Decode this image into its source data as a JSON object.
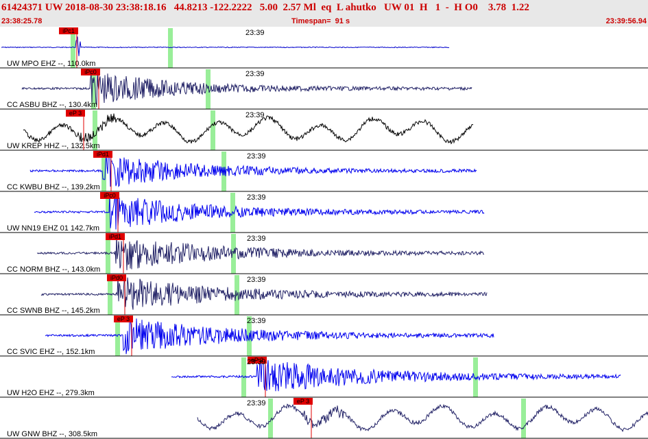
{
  "header": {
    "title": "61424371 UW 2018-08-30 23:38:18.16   44.8213 -122.2222   5.00  2.57 Ml  eq  L ahutko   UW 01  H   1  -  H O0    3.78  1.22",
    "start_time": "23:38:25.78",
    "timespan": "Timespan=  91 s",
    "end_time": "23:39:56.94"
  },
  "colors": {
    "header_text": "#cc0000",
    "pick_fill": "#e00000",
    "pick_line": "#e00000",
    "highlight": "#99ee99",
    "trace_blue": "#0000ee",
    "trace_dark": "#222266",
    "trace_black": "#000000"
  },
  "time_label": "23:39",
  "panels": [
    {
      "label": "UW MPO EHZ --, 110.0km",
      "pick": "iPc1",
      "color": "#0000cc",
      "style": "spike"
    },
    {
      "label": "CC ASBU BHZ --, 130.4km",
      "pick": "iPc0",
      "color": "#222266",
      "style": "burst"
    },
    {
      "label": "UW KREP HHZ --, 132.5km",
      "pick": "eP 3",
      "color": "#000000",
      "style": "wave"
    },
    {
      "label": "CC KWBU BHZ --, 139.2km",
      "pick": "iPd1",
      "color": "#0000ee",
      "style": "burst"
    },
    {
      "label": "UW NN19 EHZ 01 142.7km",
      "pick": "iPc0",
      "color": "#0000ee",
      "style": "burst"
    },
    {
      "label": "CC NORM BHZ --, 143.0km",
      "pick": "iPd1",
      "color": "#222266",
      "style": "burst"
    },
    {
      "label": "CC SWNB BHZ --, 145.2km",
      "pick": "iPd0",
      "color": "#222266",
      "style": "burst"
    },
    {
      "label": "CC SVIC EHZ --, 152.1km",
      "pick": "eP 3",
      "color": "#0000ee",
      "style": "burst"
    },
    {
      "label": "UW H2O EHZ --, 279.3km",
      "pick": "eP 2",
      "color": "#0000ee",
      "style": "burst"
    },
    {
      "label": "UW GNW BHZ --, 308.5km",
      "pick": "eP 3",
      "color": "#222266",
      "style": "wave"
    }
  ]
}
